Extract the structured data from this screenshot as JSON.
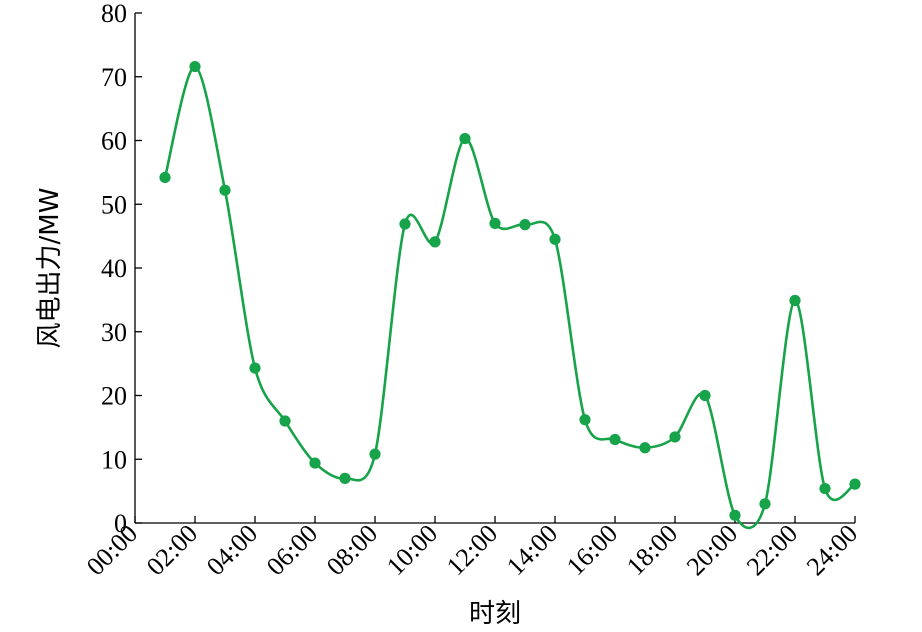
{
  "chart_data": {
    "type": "line",
    "title": "",
    "xlabel": "时刻",
    "ylabel": "风电出力/MW",
    "xlim": [
      "00:00",
      "24:00"
    ],
    "ylim": [
      0,
      80
    ],
    "grid": false,
    "legend": "none",
    "x_ticks": [
      "00:00",
      "02:00",
      "04:00",
      "06:00",
      "08:00",
      "10:00",
      "12:00",
      "14:00",
      "16:00",
      "18:00",
      "20:00",
      "22:00",
      "24:00"
    ],
    "y_ticks": [
      0,
      10,
      20,
      30,
      40,
      50,
      60,
      70,
      80
    ],
    "series": [
      {
        "color": "#17a34a",
        "x": [
          "01:00",
          "02:00",
          "03:00",
          "04:00",
          "05:00",
          "06:00",
          "07:00",
          "08:00",
          "09:00",
          "10:00",
          "11:00",
          "12:00",
          "13:00",
          "14:00",
          "15:00",
          "16:00",
          "17:00",
          "18:00",
          "19:00",
          "20:00",
          "21:00",
          "22:00",
          "23:00",
          "24:00"
        ],
        "values": [
          54.2,
          71.6,
          52.2,
          24.3,
          16.0,
          9.4,
          7.0,
          10.8,
          46.9,
          44.1,
          60.3,
          47.0,
          46.8,
          44.5,
          16.2,
          13.1,
          11.8,
          13.5,
          20.0,
          1.2,
          3.0,
          34.9,
          5.4,
          6.1
        ]
      }
    ]
  }
}
